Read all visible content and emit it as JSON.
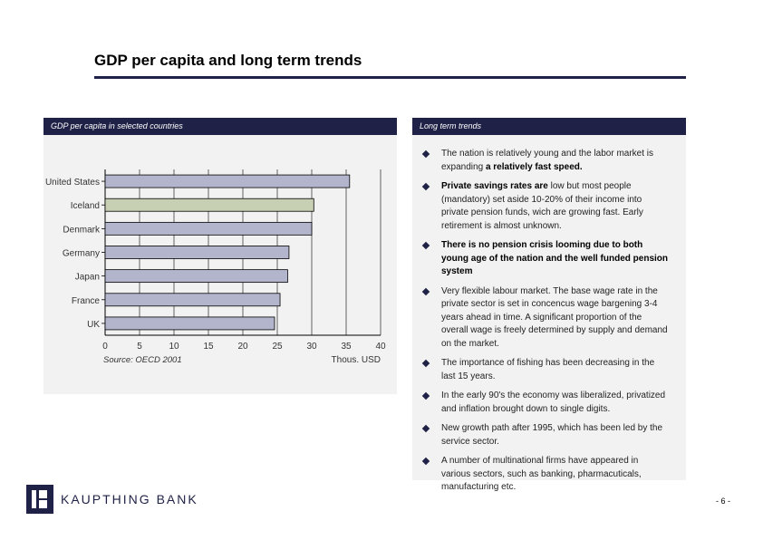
{
  "page": {
    "title": "GDP per capita and  long term trends",
    "page_number": "- 6 -"
  },
  "left_panel": {
    "header": "GDP per capita in selected countries"
  },
  "right_panel": {
    "header": "Long term trends",
    "bullets": [
      {
        "pre": "The nation is relatively young and the labor market is expanding ",
        "bold": "a relatively fast speed.",
        "post": ""
      },
      {
        "pre": "",
        "bold": "Private savings rates are",
        "post": " low but most people (mandatory) set aside 10-20% of their income into private pension funds, wich are growing fast. Early retirement is almost unknown."
      },
      {
        "pre": "",
        "bold": "There is no pension crisis looming due to both young age of the nation and the well funded pension system",
        "post": ""
      },
      {
        "pre": "Very flexible labour market. The base wage rate in the private sector is set in concencus wage bargening 3-4 years ahead in time. A significant proportion of the overall wage is freely determined by supply and demand on the market.",
        "bold": "",
        "post": ""
      },
      {
        "pre": "The importance of fishing has been decreasing in the last 15 years.",
        "bold": "",
        "post": ""
      },
      {
        "pre": "In the early 90's the economy was liberalized, privatized and inflation brought down to single digits.",
        "bold": "",
        "post": ""
      },
      {
        "pre": "New growth path after 1995, which has been led by the service sector.",
        "bold": "",
        "post": ""
      },
      {
        "pre": "A number of multinational firms have appeared in various sectors, such as banking, pharmacuticals, manufacturing etc.",
        "bold": "",
        "post": ""
      }
    ]
  },
  "footer": {
    "brand": "KAUPTHING BANK"
  },
  "colors": {
    "navy": "#1f2246",
    "bar": "#b3b5cc",
    "bar_highlight": "#c8d0b4"
  },
  "chart_data": {
    "type": "bar",
    "orientation": "horizontal",
    "title": "GDP per capita in selected countries",
    "categories": [
      "United States",
      "Iceland",
      "Denmark",
      "Germany",
      "Japan",
      "France",
      "UK"
    ],
    "values": [
      35.5,
      30.3,
      30.0,
      26.7,
      26.5,
      25.4,
      24.6
    ],
    "highlight": "Iceland",
    "xlim": [
      0,
      40
    ],
    "xticks": [
      "0",
      "5",
      "10",
      "15",
      "20",
      "25",
      "30",
      "35",
      "40"
    ],
    "xlabel": "Thous. USD",
    "source": "Source:  OECD 2001",
    "grid": true
  }
}
